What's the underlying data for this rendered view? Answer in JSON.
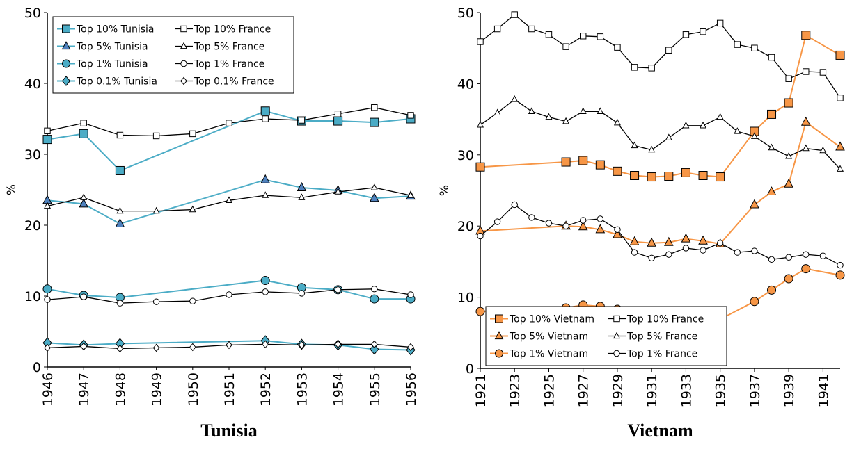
{
  "chart_data": [
    {
      "type": "line",
      "title": "Tunisia",
      "ylabel": "%",
      "legend": "upper left",
      "xlim": [
        1946,
        1956
      ],
      "xticks": [
        1946,
        1947,
        1948,
        1949,
        1950,
        1951,
        1952,
        1953,
        1954,
        1955,
        1956
      ],
      "ylim": [
        0,
        50
      ],
      "yticks": [
        0,
        10,
        20,
        30,
        40,
        50
      ],
      "series": [
        {
          "name": "Top 10% Tunisia",
          "color": "#4bacc6",
          "marker": "square",
          "marker_fill": "#4bacc6",
          "x": [
            1946,
            1947,
            1948,
            1952,
            1953,
            1954,
            1955,
            1956
          ],
          "values": [
            32.1,
            32.9,
            27.7,
            36.1,
            34.7,
            34.7,
            34.5,
            35.0
          ]
        },
        {
          "name": "Top 10% France",
          "color": "#000000",
          "marker": "square",
          "marker_fill": "#ffffff",
          "x": [
            1946,
            1947,
            1948,
            1949,
            1950,
            1951,
            1952,
            1953,
            1954,
            1955,
            1956
          ],
          "values": [
            33.3,
            34.4,
            32.7,
            32.6,
            32.9,
            34.4,
            35.0,
            34.8,
            35.7,
            36.6,
            35.5
          ]
        },
        {
          "name": "Top 5% Tunisia",
          "color": "#4bacc6",
          "marker": "triangle",
          "marker_fill": "#4f81bd",
          "x": [
            1946,
            1947,
            1948,
            1952,
            1953,
            1954,
            1955,
            1956
          ],
          "values": [
            23.5,
            23.0,
            20.2,
            26.4,
            25.3,
            24.9,
            23.8,
            24.1
          ]
        },
        {
          "name": "Top 5% France",
          "color": "#000000",
          "marker": "triangle",
          "marker_fill": "#ffffff",
          "x": [
            1946,
            1947,
            1948,
            1949,
            1950,
            1951,
            1952,
            1953,
            1954,
            1955,
            1956
          ],
          "values": [
            22.7,
            23.9,
            22.0,
            22.0,
            22.2,
            23.5,
            24.2,
            23.9,
            24.7,
            25.3,
            24.2
          ]
        },
        {
          "name": "Top 1% Tunisia",
          "color": "#4bacc6",
          "marker": "circle",
          "marker_fill": "#4bacc6",
          "x": [
            1946,
            1947,
            1948,
            1952,
            1953,
            1954,
            1955,
            1956
          ],
          "values": [
            11.0,
            10.1,
            9.8,
            12.2,
            11.2,
            10.9,
            9.6,
            9.6
          ]
        },
        {
          "name": "Top 1% France",
          "color": "#000000",
          "marker": "circle",
          "marker_fill": "#ffffff",
          "x": [
            1946,
            1947,
            1948,
            1949,
            1950,
            1951,
            1952,
            1953,
            1954,
            1955,
            1956
          ],
          "values": [
            9.5,
            9.9,
            9.0,
            9.2,
            9.3,
            10.2,
            10.6,
            10.4,
            10.9,
            11.0,
            10.2
          ]
        },
        {
          "name": "Top 0.1% Tunisia",
          "color": "#4bacc6",
          "marker": "diamond",
          "marker_fill": "#4bacc6",
          "x": [
            1946,
            1947,
            1948,
            1952,
            1953,
            1954,
            1955,
            1956
          ],
          "values": [
            3.4,
            3.1,
            3.3,
            3.7,
            3.2,
            3.1,
            2.5,
            2.4
          ]
        },
        {
          "name": "Top 0.1% France",
          "color": "#000000",
          "marker": "diamond",
          "marker_fill": "#ffffff",
          "x": [
            1946,
            1947,
            1948,
            1949,
            1950,
            1951,
            1952,
            1953,
            1954,
            1955,
            1956
          ],
          "values": [
            2.7,
            2.9,
            2.6,
            2.7,
            2.8,
            3.1,
            3.2,
            3.1,
            3.2,
            3.2,
            2.8
          ]
        }
      ]
    },
    {
      "type": "line",
      "title": "Vietnam",
      "ylabel": "%",
      "legend": "lower left",
      "xlim": [
        1921,
        1942
      ],
      "xticks": [
        1921,
        1923,
        1925,
        1927,
        1929,
        1931,
        1933,
        1935,
        1937,
        1939,
        1941
      ],
      "ylim": [
        0,
        50
      ],
      "yticks": [
        0,
        10,
        20,
        30,
        40,
        50
      ],
      "series": [
        {
          "name": "Top 10% Vietnam",
          "color": "#f79646",
          "marker": "square",
          "marker_fill": "#f79646",
          "x": [
            1921,
            1926,
            1927,
            1928,
            1929,
            1930,
            1931,
            1932,
            1933,
            1934,
            1935,
            1937,
            1938,
            1939,
            1940,
            1942
          ],
          "values": [
            28.3,
            29.0,
            29.2,
            28.6,
            27.7,
            27.1,
            26.9,
            27.0,
            27.5,
            27.1,
            26.9,
            33.3,
            35.7,
            37.3,
            46.8,
            44.0
          ]
        },
        {
          "name": "Top 10% France",
          "color": "#000000",
          "marker": "square",
          "marker_fill": "#ffffff",
          "x": [
            1921,
            1922,
            1923,
            1924,
            1925,
            1926,
            1927,
            1928,
            1929,
            1930,
            1931,
            1932,
            1933,
            1934,
            1935,
            1936,
            1937,
            1938,
            1939,
            1940,
            1941,
            1942
          ],
          "values": [
            45.9,
            47.7,
            49.7,
            47.7,
            46.9,
            45.2,
            46.7,
            46.6,
            45.1,
            42.3,
            42.2,
            44.7,
            46.9,
            47.3,
            48.5,
            45.5,
            45.0,
            43.7,
            40.7,
            41.7,
            41.6,
            38.0
          ]
        },
        {
          "name": "Top 5% Vietnam",
          "color": "#f79646",
          "marker": "triangle",
          "marker_fill": "#f79646",
          "x": [
            1921,
            1926,
            1927,
            1928,
            1929,
            1930,
            1931,
            1932,
            1933,
            1934,
            1935,
            1937,
            1938,
            1939,
            1940,
            1942
          ],
          "values": [
            19.3,
            20.0,
            19.9,
            19.5,
            18.8,
            17.8,
            17.6,
            17.7,
            18.2,
            17.9,
            17.5,
            23.0,
            24.8,
            25.9,
            34.6,
            31.1
          ]
        },
        {
          "name": "Top 5% France",
          "color": "#000000",
          "marker": "triangle",
          "marker_fill": "#ffffff",
          "x": [
            1921,
            1922,
            1923,
            1924,
            1925,
            1926,
            1927,
            1928,
            1929,
            1930,
            1931,
            1932,
            1933,
            1934,
            1935,
            1936,
            1937,
            1938,
            1939,
            1940,
            1941,
            1942
          ],
          "values": [
            34.2,
            35.9,
            37.8,
            36.1,
            35.3,
            34.7,
            36.1,
            36.1,
            34.5,
            31.3,
            30.7,
            32.4,
            34.1,
            34.1,
            35.3,
            33.3,
            32.6,
            31.0,
            29.8,
            30.9,
            30.6,
            28.0
          ]
        },
        {
          "name": "Top 1% Vietnam",
          "color": "#f79646",
          "marker": "circle",
          "marker_fill": "#f79646",
          "x": [
            1921,
            1926,
            1927,
            1928,
            1929,
            1930,
            1931,
            1932,
            1933,
            1934,
            1935,
            1937,
            1938,
            1939,
            1940,
            1942
          ],
          "values": [
            8.0,
            8.5,
            8.9,
            8.7,
            8.3,
            7.7,
            7.4,
            6.6,
            7.7,
            7.4,
            6.9,
            9.4,
            11.0,
            12.6,
            14.0,
            13.1
          ]
        },
        {
          "name": "Top 1% France",
          "color": "#000000",
          "marker": "circle",
          "marker_fill": "#ffffff",
          "x": [
            1921,
            1922,
            1923,
            1924,
            1925,
            1926,
            1927,
            1928,
            1929,
            1930,
            1931,
            1932,
            1933,
            1934,
            1935,
            1936,
            1937,
            1938,
            1939,
            1940,
            1941,
            1942
          ],
          "values": [
            18.6,
            20.6,
            23.0,
            21.2,
            20.4,
            20.0,
            20.8,
            21.0,
            19.5,
            16.3,
            15.5,
            16.0,
            16.9,
            16.6,
            17.6,
            16.3,
            16.5,
            15.3,
            15.6,
            16.0,
            15.8,
            14.5
          ]
        }
      ]
    }
  ]
}
